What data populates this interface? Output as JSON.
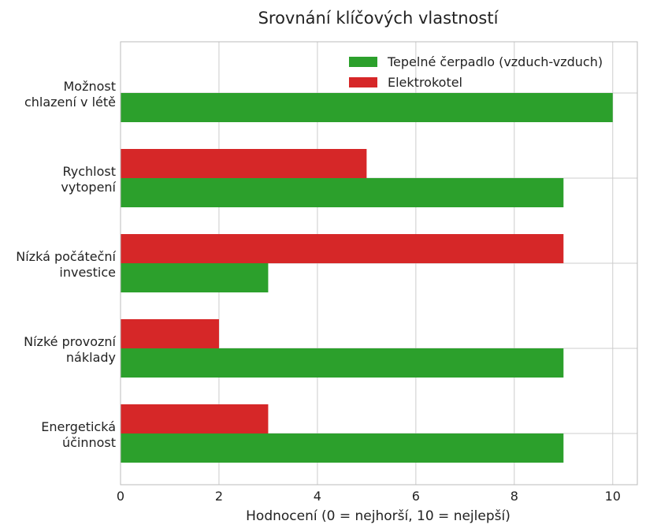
{
  "chart_data": {
    "type": "bar",
    "orientation": "horizontal",
    "title": "Srovnání klíčových vlastností",
    "xlabel": "Hodnocení (0 = nejhorší, 10 = nejlepší)",
    "ylabel": "",
    "xlim": [
      0,
      10.5
    ],
    "xticks": [
      0,
      2,
      4,
      6,
      8,
      10
    ],
    "grid": true,
    "legend_position": "top-right",
    "categories": [
      [
        "Možnost",
        "chlazení v létě"
      ],
      [
        "Rychlost",
        "vytopení"
      ],
      [
        "Nízká počáteční",
        "investice"
      ],
      [
        "Nízké provozní",
        "náklady"
      ],
      [
        "Energetická",
        "účinnost"
      ]
    ],
    "series": [
      {
        "name": "Tepelné čerpadlo (vzduch-vzduch)",
        "color": "#2ca02c",
        "values": [
          10,
          9,
          3,
          9,
          9
        ]
      },
      {
        "name": "Elektrokotel",
        "color": "#d62728",
        "values": [
          0,
          5,
          9,
          2,
          3
        ]
      }
    ]
  }
}
